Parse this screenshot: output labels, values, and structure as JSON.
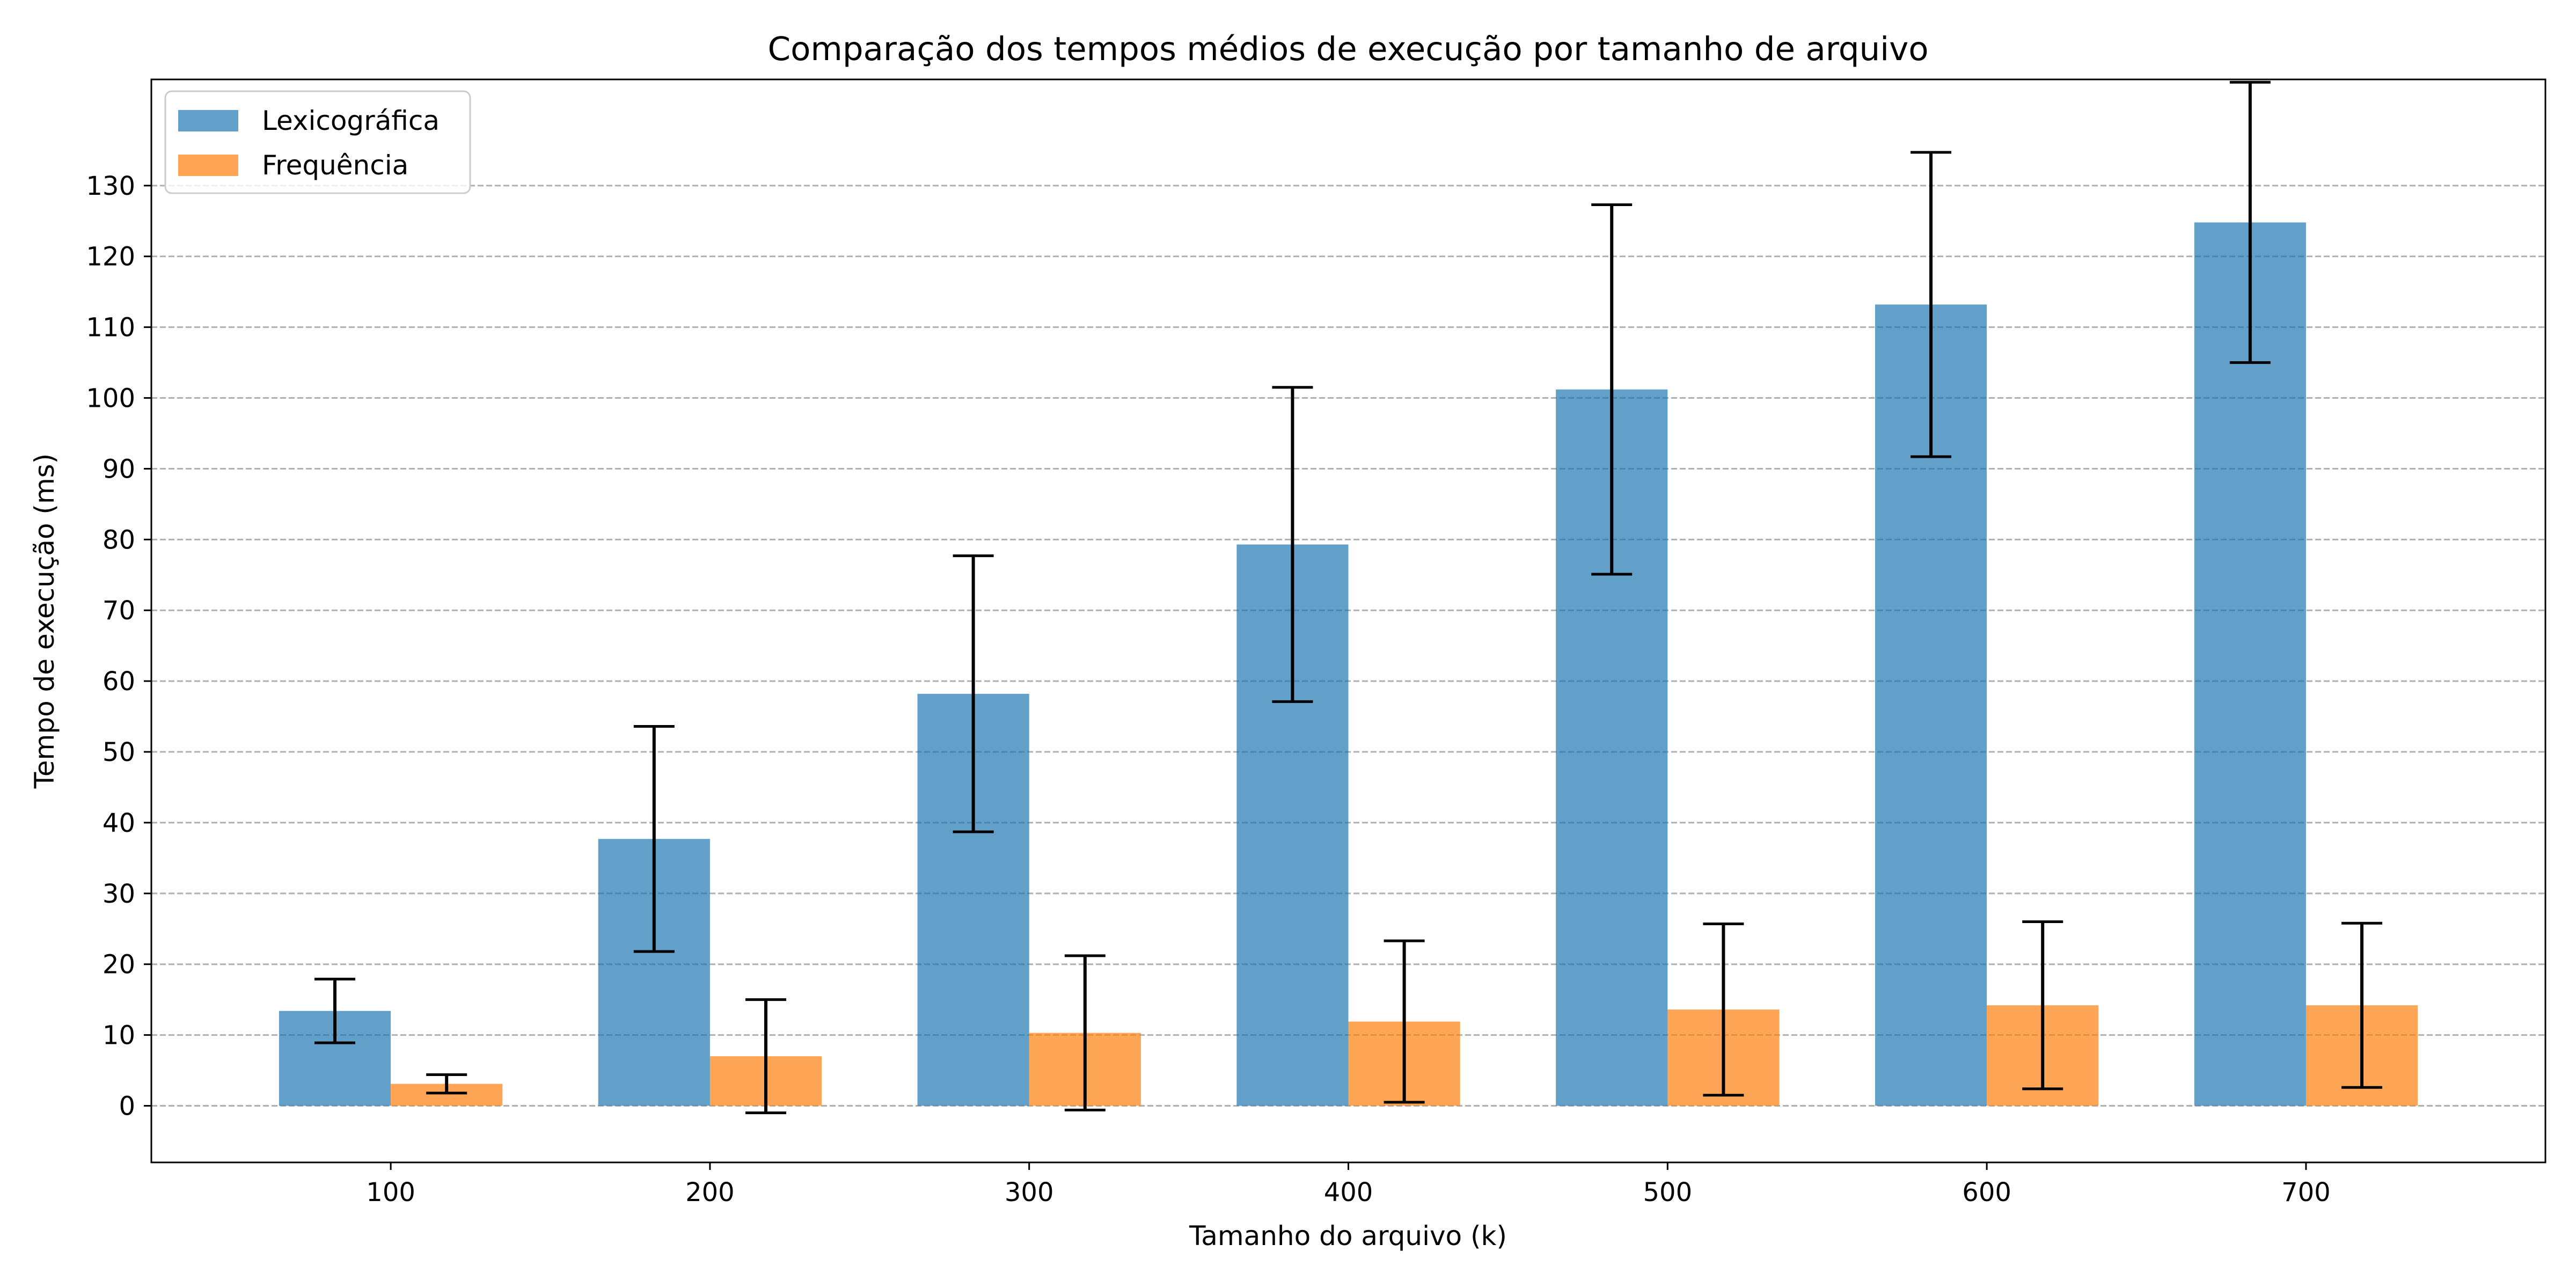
{
  "chart_data": {
    "type": "bar",
    "title": "Comparação dos tempos médios de execução por tamanho de arquivo",
    "xlabel": "Tamanho do arquivo (k)",
    "ylabel": "Tempo de execução (ms)",
    "categories": [
      "100",
      "200",
      "300",
      "400",
      "500",
      "600",
      "700"
    ],
    "series": [
      {
        "name": "Lexicográfica",
        "color": "#1f77b4",
        "values": [
          13.4,
          37.7,
          58.2,
          79.3,
          101.2,
          113.2,
          124.8
        ],
        "error": [
          4.5,
          15.9,
          19.5,
          22.2,
          26.1,
          21.5,
          19.8
        ]
      },
      {
        "name": "Frequência",
        "color": "#ff7f0e",
        "values": [
          3.1,
          7.0,
          10.3,
          11.9,
          13.6,
          14.2,
          14.2
        ],
        "error": [
          1.3,
          8.0,
          10.9,
          11.4,
          12.1,
          11.8,
          11.6
        ]
      }
    ],
    "yticks": [
      0,
      10,
      20,
      30,
      40,
      50,
      60,
      70,
      80,
      90,
      100,
      110,
      120,
      130
    ],
    "ylim": [
      -8,
      145
    ],
    "grid": "y-dashed",
    "legend": "upper-left"
  }
}
